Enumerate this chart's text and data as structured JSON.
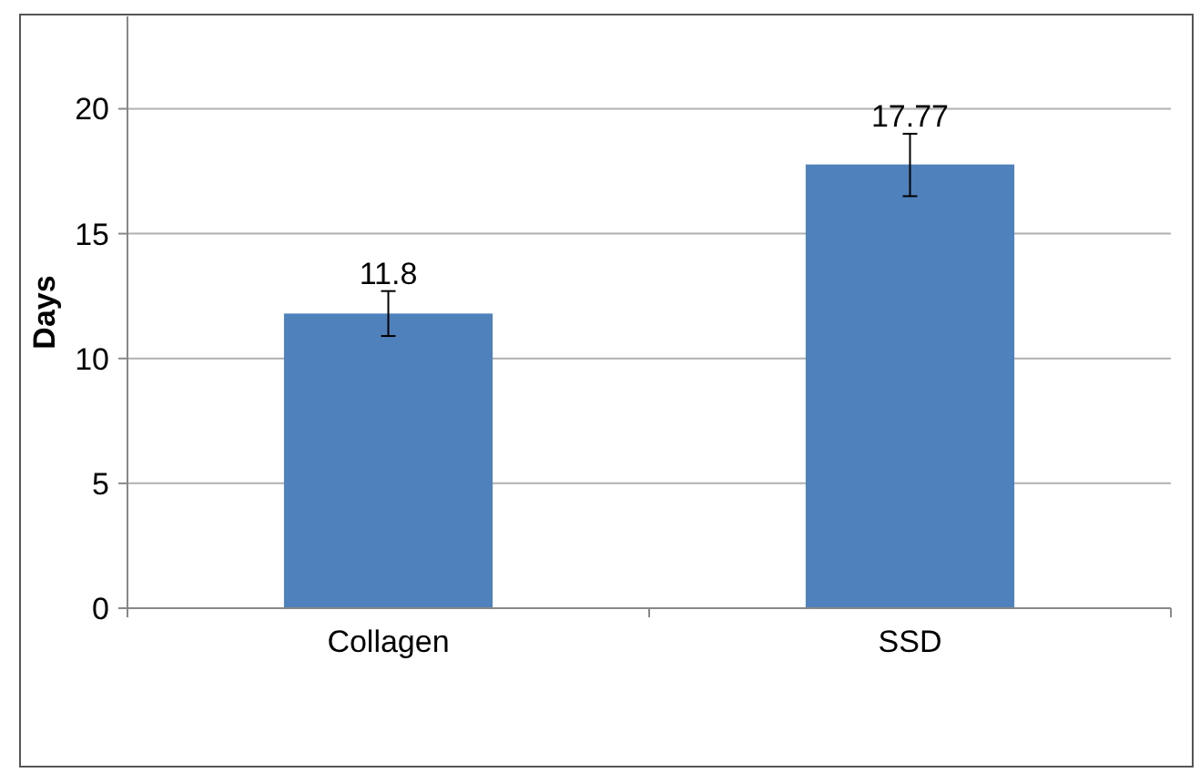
{
  "chart_data": {
    "type": "bar",
    "ylabel": "Days",
    "categories": [
      "Collagen",
      "SSD"
    ],
    "series": [
      {
        "color": "#4f81bd",
        "values": [
          11.8,
          17.77
        ],
        "errors": [
          [
            10.9,
            12.7
          ],
          [
            16.5,
            19.0
          ]
        ]
      }
    ],
    "ylim": [
      0,
      23.7
    ],
    "yticks": [
      0,
      5,
      10,
      15,
      20
    ],
    "grid": "y",
    "data_labels": true
  }
}
